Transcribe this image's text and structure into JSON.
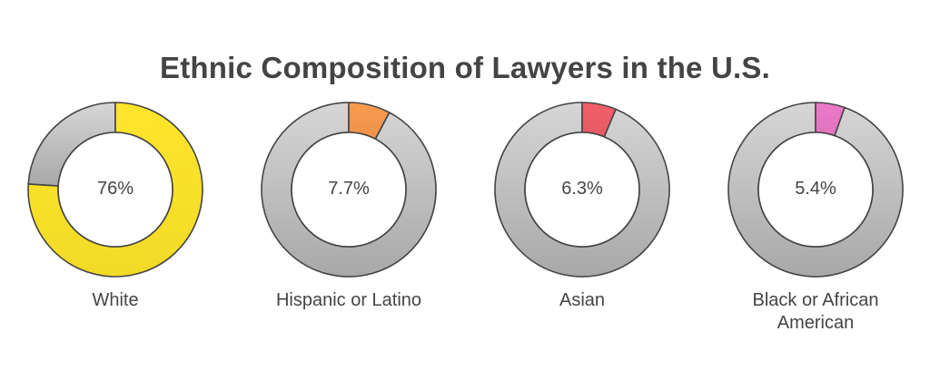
{
  "chart_data": {
    "type": "pie",
    "title": "Ethnic Composition of Lawyers in the U.S.",
    "categories": [
      "White",
      "Hispanic or Latino",
      "Asian",
      "Black or African American"
    ],
    "values": [
      76,
      7.7,
      6.3,
      5.4
    ],
    "value_labels": [
      "76%",
      "7.7%",
      "6.3%",
      "5.4%"
    ],
    "unit": "%",
    "colors": [
      "#FFE52A",
      "#F89B4E",
      "#F25F6A",
      "#EC79C8"
    ],
    "remainder_color": "#C4C4C4"
  }
}
